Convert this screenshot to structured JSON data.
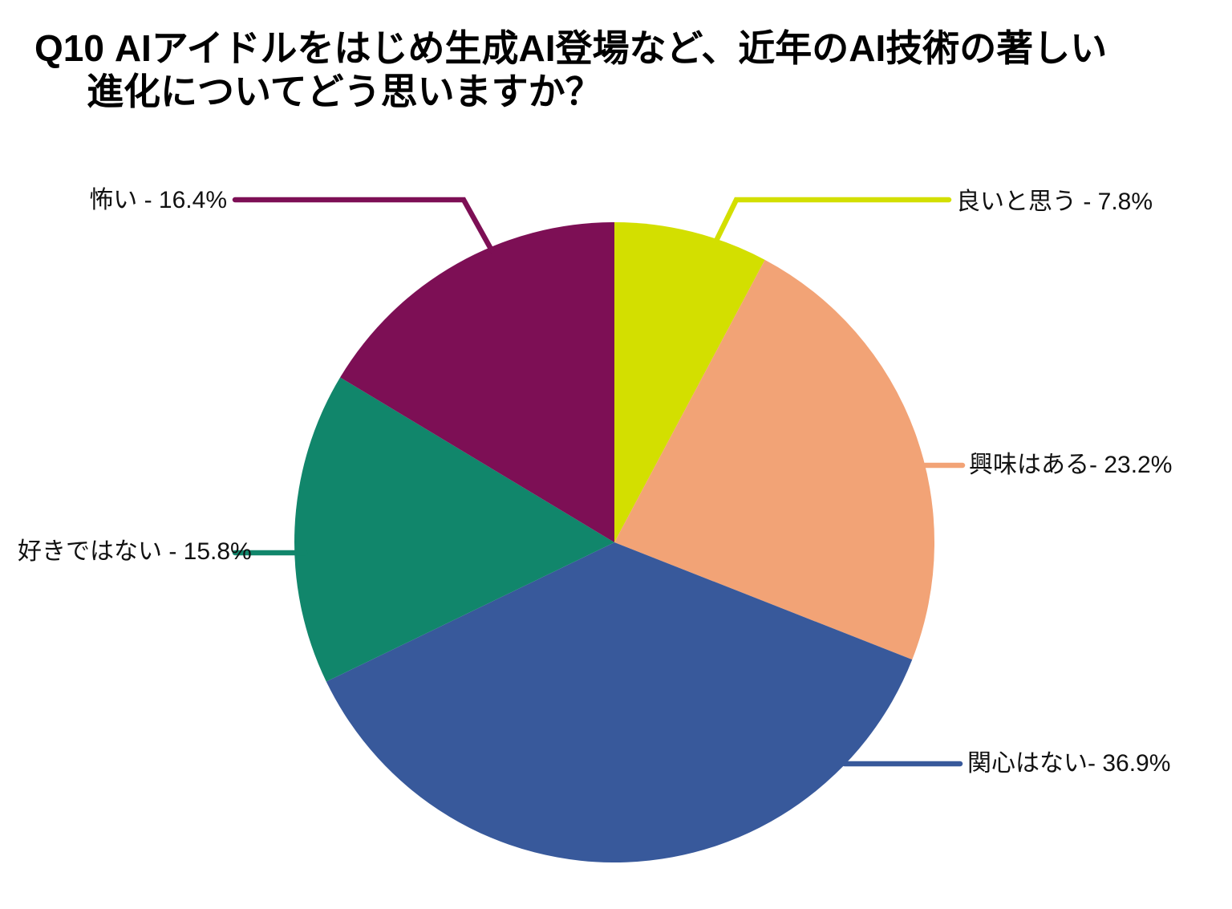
{
  "page": {
    "background": "#ffffff"
  },
  "title": {
    "prefix": "Q10",
    "line1": "AIアイドルをはじめ生成AI登場など、近年のAI技術の著しい",
    "line2": "進化についてどう思いますか？"
  },
  "chart_data": {
    "type": "pie",
    "title": "Q10 AIアイドルをはじめ生成AI登場など、近年のAI技術の著しい進化についてどう思いますか？",
    "unit": "%",
    "start_angle_deg": 0,
    "direction": "clockwise",
    "legend_position": "callout-labels",
    "slices": [
      {
        "key": "good",
        "label": "良いと思う",
        "value": 7.8,
        "display": "良いと思う - 7.8%",
        "color": "#d3df00"
      },
      {
        "key": "interested",
        "label": "興味はある",
        "value": 23.2,
        "display": "興味はある- 23.2%",
        "color": "#f2a376"
      },
      {
        "key": "not-interested",
        "label": "関心はない",
        "value": 36.9,
        "display": "関心はない- 36.9%",
        "color": "#38599b"
      },
      {
        "key": "dislike",
        "label": "好きではない",
        "value": 15.8,
        "display": "好きではない - 15.8%",
        "color": "#11866b"
      },
      {
        "key": "scary",
        "label": "怖い",
        "value": 16.4,
        "display": "怖い - 16.4%",
        "color": "#7d0f55"
      }
    ]
  }
}
